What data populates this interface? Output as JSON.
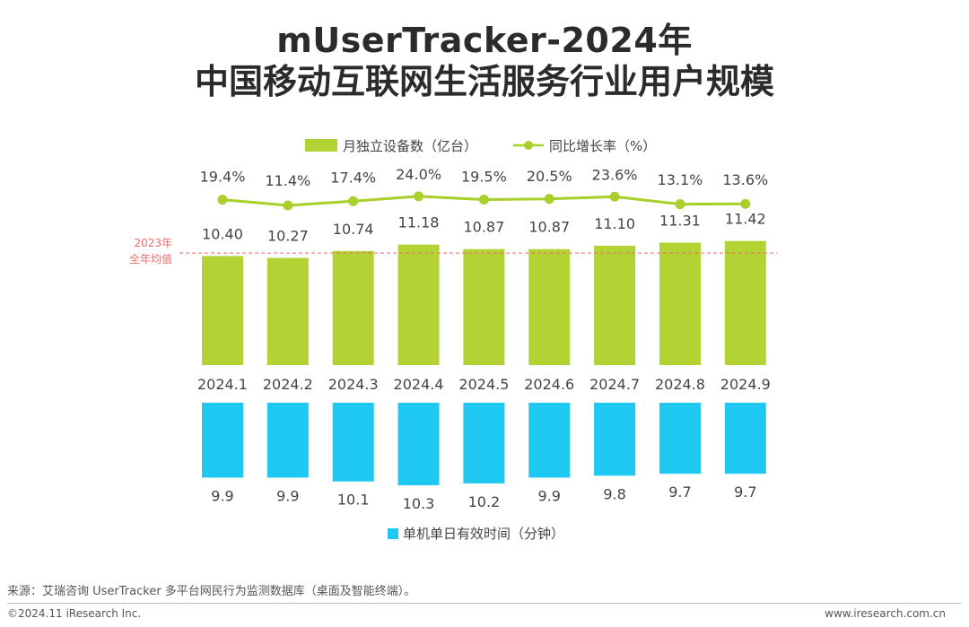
{
  "title": {
    "line1": "mUserTracker-2024年",
    "line2": "中国移动互联网生活服务行业用户规模"
  },
  "colors": {
    "bar_top": "#b3d234",
    "line": "#a8cf2a",
    "bar_bottom": "#1ec8f0",
    "avg_line": "#e8706e",
    "text": "#444444"
  },
  "chart_data": {
    "type": "bar",
    "categories": [
      "2024.1",
      "2024.2",
      "2024.3",
      "2024.4",
      "2024.5",
      "2024.6",
      "2024.7",
      "2024.8",
      "2024.9"
    ],
    "series": [
      {
        "name": "月独立设备数（亿台）",
        "type": "bar",
        "values": [
          10.4,
          10.27,
          10.74,
          11.18,
          10.87,
          10.87,
          11.1,
          11.31,
          11.42
        ],
        "labels": [
          "10.40",
          "10.27",
          "10.74",
          "11.18",
          "10.87",
          "10.87",
          "11.10",
          "11.31",
          "11.42"
        ]
      },
      {
        "name": "同比增长率（%）",
        "type": "line",
        "values": [
          19.4,
          11.4,
          17.4,
          24.0,
          19.5,
          20.5,
          23.6,
          13.1,
          13.6
        ],
        "labels": [
          "19.4%",
          "11.4%",
          "17.4%",
          "24.0%",
          "19.5%",
          "20.5%",
          "23.6%",
          "13.1%",
          "13.6%"
        ]
      },
      {
        "name": "单机单日有效时间（分钟）",
        "type": "bar",
        "values": [
          9.9,
          9.9,
          10.1,
          10.3,
          10.2,
          9.9,
          9.8,
          9.7,
          9.7
        ],
        "labels": [
          "9.9",
          "9.9",
          "10.1",
          "10.3",
          "10.2",
          "9.9",
          "9.8",
          "9.7",
          "9.7"
        ]
      }
    ],
    "reference_line": {
      "label_line1": "2023年",
      "label_line2": "全年均值",
      "value": 10.6
    },
    "top_axis_min": 3.0,
    "bottom_axis_min": 6.0
  },
  "footer": {
    "source": "来源：艾瑞咨询 UserTracker 多平台网民行为监测数据库（桌面及智能终端）。",
    "copyright": "©2024.11 iResearch Inc.",
    "website": "www.iresearch.com.cn"
  }
}
